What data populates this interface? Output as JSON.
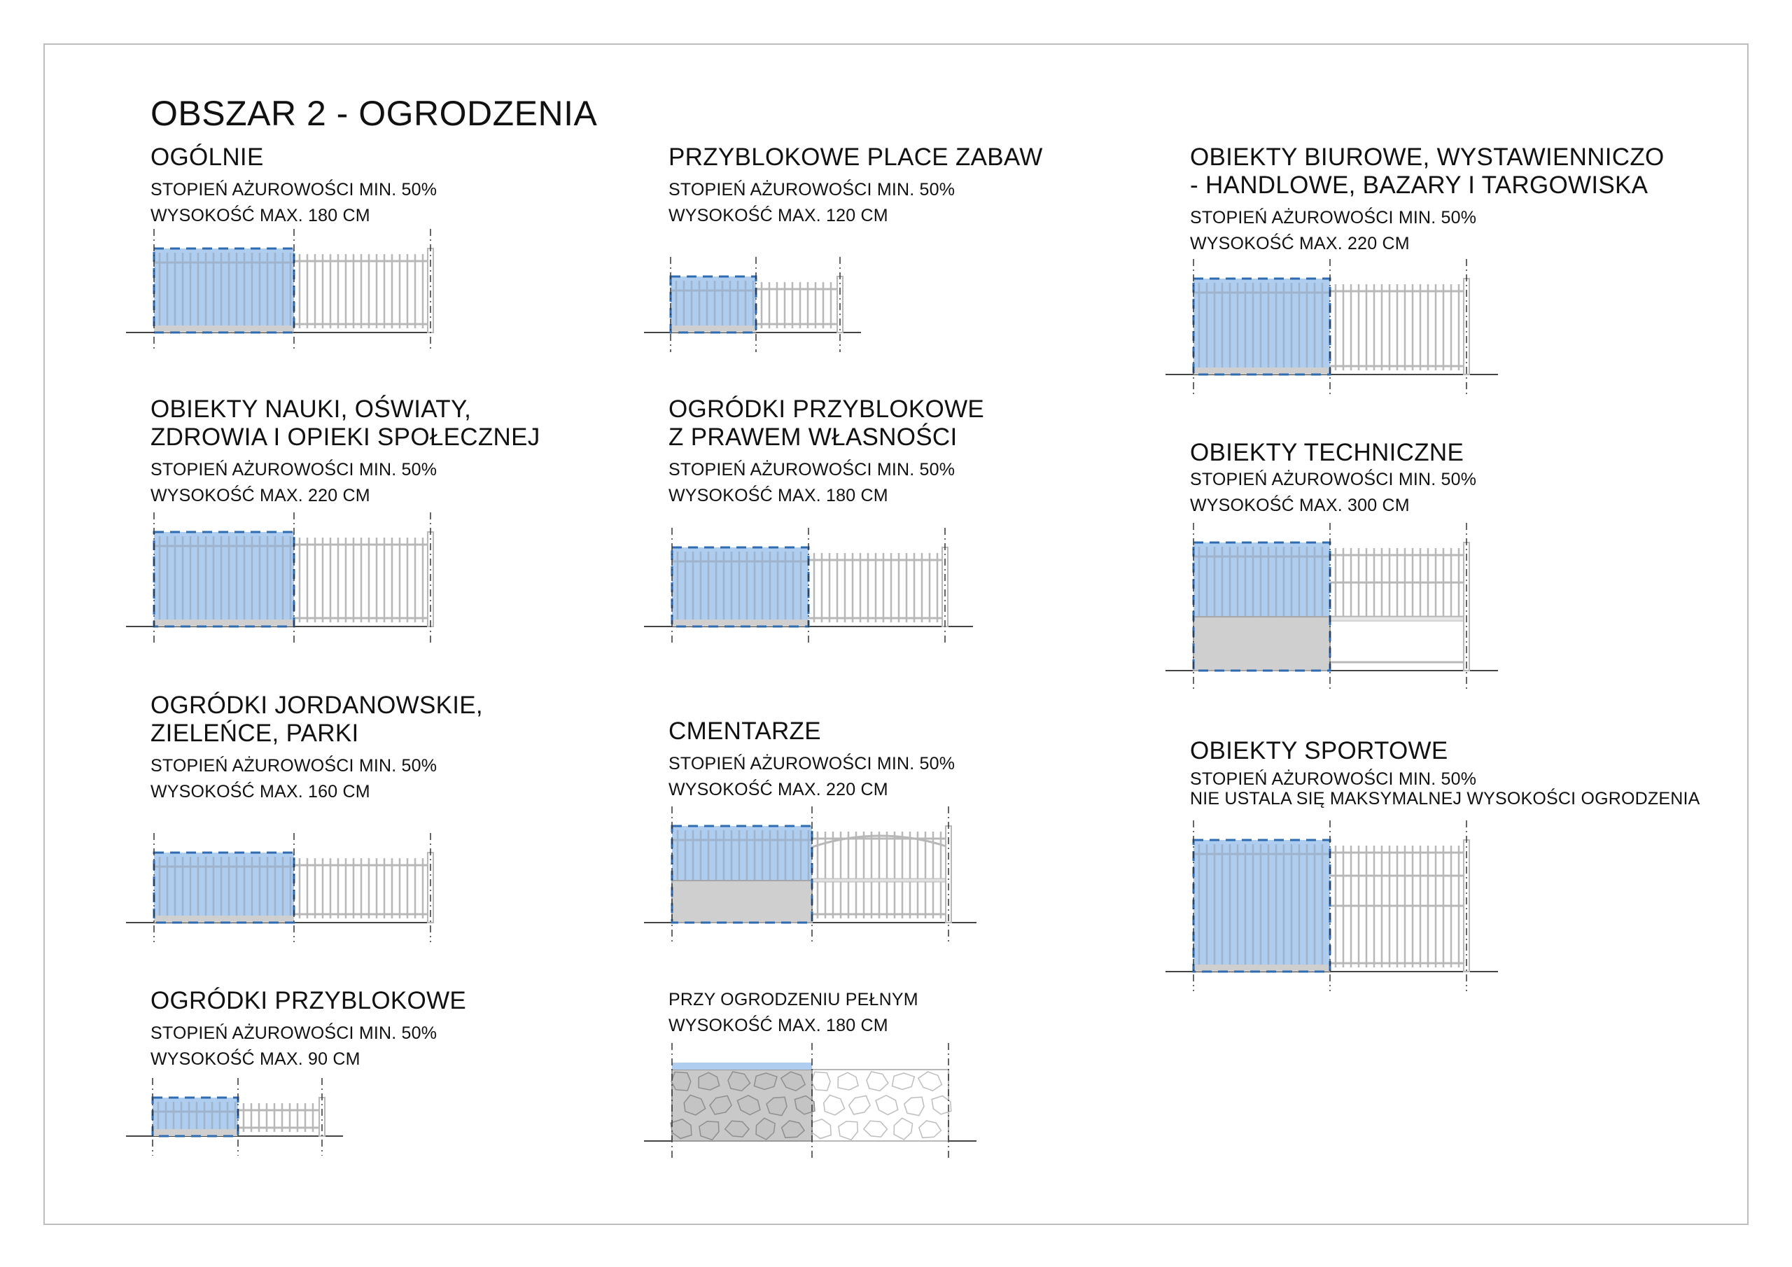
{
  "page_title": "OBSZAR 2 - OGRODZENIA",
  "colors": {
    "highlight_fill": "#aecdef",
    "highlight_border": "#2f6bb0",
    "fence_line": "#b8b8b8",
    "base_fill": "#cfcfcf",
    "ground_line": "#444444",
    "frame": "#bdbdbd"
  },
  "sections": [
    {
      "id": "ogolnie",
      "heading": [
        "OGÓLNIE"
      ],
      "lines": [
        "STOPIEŃ AŻUROWOŚCI MIN. 50%",
        "WYSOKOŚĆ MAX. 180 CM"
      ],
      "fence_type": "picket",
      "min_openness_percent": 50,
      "max_height_cm": 180
    },
    {
      "id": "place-zabaw",
      "heading": [
        "PRZYBLOKOWE PLACE ZABAW"
      ],
      "lines": [
        "STOPIEŃ AŻUROWOŚCI MIN. 50%",
        "WYSOKOŚĆ MAX. 120 CM"
      ],
      "fence_type": "picket",
      "min_openness_percent": 50,
      "max_height_cm": 120
    },
    {
      "id": "biurowe",
      "heading": [
        "OBIEKTY BIUROWE, WYSTAWIENNICZO",
        "- HANDLOWE, BAZARY I TARGOWISKA"
      ],
      "lines": [
        "STOPIEŃ AŻUROWOŚCI MIN. 50%",
        "WYSOKOŚĆ MAX. 220 CM"
      ],
      "fence_type": "picket",
      "min_openness_percent": 50,
      "max_height_cm": 220
    },
    {
      "id": "nauki",
      "heading": [
        "OBIEKTY NAUKI, OŚWIATY,",
        "ZDROWIA I OPIEKI SPOŁECZNEJ"
      ],
      "lines": [
        "STOPIEŃ AŻUROWOŚCI MIN. 50%",
        "WYSOKOŚĆ MAX. 220 CM"
      ],
      "fence_type": "picket",
      "min_openness_percent": 50,
      "max_height_cm": 220
    },
    {
      "id": "ogrodki-wlasnosc",
      "heading": [
        "OGRÓDKI PRZYBLOKOWE",
        "Z PRAWEM WŁASNOŚCI"
      ],
      "lines": [
        "STOPIEŃ AŻUROWOŚCI MIN. 50%",
        "WYSOKOŚĆ MAX. 180 CM"
      ],
      "fence_type": "picket",
      "min_openness_percent": 50,
      "max_height_cm": 180
    },
    {
      "id": "techniczne",
      "heading": [
        "OBIEKTY TECHNICZNE"
      ],
      "lines": [
        "STOPIEŃ AŻUROWOŚCI MIN. 50%",
        "WYSOKOŚĆ MAX. 300 CM"
      ],
      "fence_type": "solid-base",
      "min_openness_percent": 50,
      "max_height_cm": 300
    },
    {
      "id": "jordanowskie",
      "heading": [
        "OGRÓDKI JORDANOWSKIE,",
        "ZIELEŃCE, PARKI"
      ],
      "lines": [
        "STOPIEŃ AŻUROWOŚCI MIN. 50%",
        "WYSOKOŚĆ MAX. 160 CM"
      ],
      "fence_type": "picket",
      "min_openness_percent": 50,
      "max_height_cm": 160
    },
    {
      "id": "cmentarze",
      "heading": [
        "CMENTARZE"
      ],
      "lines": [
        "STOPIEŃ AŻUROWOŚCI MIN. 50%",
        "WYSOKOŚĆ MAX. 220 CM"
      ],
      "fence_type": "solid-base-arched",
      "min_openness_percent": 50,
      "max_height_cm": 220
    },
    {
      "id": "sportowe",
      "heading": [
        "OBIEKTY SPORTOWE"
      ],
      "lines": [
        "STOPIEŃ AŻUROWOŚCI MIN. 50%",
        "NIE USTALA SIĘ MAKSYMALNEJ WYSOKOŚCI OGRODZENIA"
      ],
      "fence_type": "mesh",
      "min_openness_percent": 50,
      "max_height_cm": null
    },
    {
      "id": "ogrodki",
      "heading": [
        "OGRÓDKI PRZYBLOKOWE"
      ],
      "lines": [
        "STOPIEŃ AŻUROWOŚCI MIN. 50%",
        "WYSOKOŚĆ MAX. 90 CM"
      ],
      "fence_type": "picket",
      "min_openness_percent": 50,
      "max_height_cm": 90
    },
    {
      "id": "pelne",
      "heading": [],
      "lines": [
        "PRZY OGRODZENIU PEŁNYM",
        "WYSOKOŚĆ MAX. 180 CM"
      ],
      "fence_type": "stone",
      "max_height_cm": 180
    }
  ]
}
